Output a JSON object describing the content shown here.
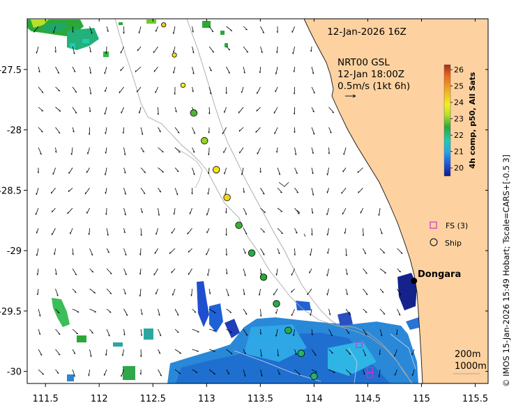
{
  "map": {
    "timestamp": "12-Jan-2026 16Z",
    "current_source": "NRT00 GSL",
    "current_time": "12-Jan 18:00Z",
    "current_scale": "0.5m/s (1kt 6h)",
    "place_name": "Dongara",
    "contour_labels": [
      "200m",
      "1000m"
    ],
    "legend": {
      "float_label": "FS (3)",
      "ship_label": "Ship"
    },
    "colorbar": {
      "title": "4h comp, p50, All Sats",
      "min": 19.5,
      "max": 26.3,
      "ticks": [
        "20",
        "21",
        "22",
        "23",
        "24",
        "25",
        "26"
      ]
    },
    "credit": "© IMOS 15-Jan-2026 15:49 Hobart; Tscale=CARS+[-0.5 3]",
    "axes": {
      "lon_range": [
        111.33,
        115.62
      ],
      "lat_range": [
        -30.1,
        -27.08
      ],
      "x_ticks": [
        {
          "value": 111.5,
          "label": "111.5"
        },
        {
          "value": 112,
          "label": "112"
        },
        {
          "value": 112.5,
          "label": "112.5"
        },
        {
          "value": 113,
          "label": "113"
        },
        {
          "value": 113.5,
          "label": "113.5"
        },
        {
          "value": 114,
          "label": "114"
        },
        {
          "value": 114.5,
          "label": "114.5"
        },
        {
          "value": 115,
          "label": "115"
        },
        {
          "value": 115.5,
          "label": "115.5"
        }
      ],
      "y_ticks": [
        {
          "value": -27.5,
          "label": "-27.5"
        },
        {
          "value": -28,
          "label": "-28"
        },
        {
          "value": -28.5,
          "label": "-28.5"
        },
        {
          "value": -29,
          "label": "-29"
        },
        {
          "value": -29.5,
          "label": "-29.5"
        },
        {
          "value": -30,
          "label": "-30"
        }
      ]
    },
    "dongara": {
      "lon": 114.93,
      "lat": -29.25
    },
    "track_points": [
      {
        "lon": 112.6,
        "lat": -27.13,
        "temp": 24.4
      },
      {
        "lon": 112.7,
        "lat": -27.38,
        "temp": 24.2
      },
      {
        "lon": 112.78,
        "lat": -27.63,
        "temp": 23.9
      },
      {
        "lon": 112.88,
        "lat": -27.86,
        "temp": 22.7
      },
      {
        "lon": 112.98,
        "lat": -28.09,
        "temp": 23.1
      },
      {
        "lon": 113.09,
        "lat": -28.33,
        "temp": 24.1
      },
      {
        "lon": 113.19,
        "lat": -28.56,
        "temp": 24.3
      },
      {
        "lon": 113.3,
        "lat": -28.79,
        "temp": 22.6
      },
      {
        "lon": 113.42,
        "lat": -29.02,
        "temp": 22.4
      },
      {
        "lon": 113.53,
        "lat": -29.22,
        "temp": 22.5
      },
      {
        "lon": 113.65,
        "lat": -29.44,
        "temp": 22.4
      },
      {
        "lon": 113.76,
        "lat": -29.66,
        "temp": 22.4
      },
      {
        "lon": 113.88,
        "lat": -29.85,
        "temp": 22.2
      },
      {
        "lon": 114.0,
        "lat": -30.04,
        "temp": 22.2
      }
    ],
    "float_markers": [
      {
        "lon": 114.42,
        "lat": -29.78
      },
      {
        "lon": 114.52,
        "lat": -29.99
      },
      {
        "lon": 114.52,
        "lat": -30.03
      }
    ]
  }
}
